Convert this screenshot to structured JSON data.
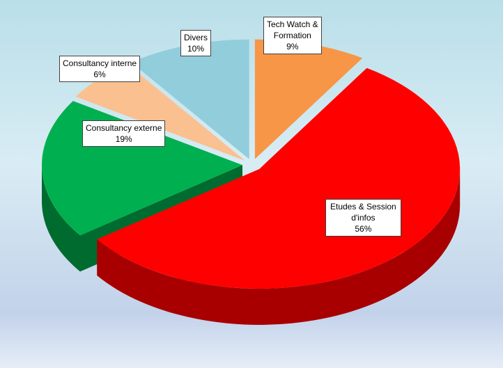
{
  "chart_data": {
    "type": "pie",
    "title": "",
    "categories": [
      "Tech Watch & Formation",
      "Etudes & Session d'infos",
      "Consultancy externe",
      "Consultancy interne",
      "Divers"
    ],
    "values": [
      9,
      56,
      19,
      6,
      10
    ],
    "unit": "%",
    "slices": [
      {
        "label_lines": [
          "Tech Watch &",
          "Formation"
        ],
        "value": 9,
        "value_label": "9%",
        "color": "#f79646",
        "side_color": "#b8652a"
      },
      {
        "label_lines": [
          "Etudes & Session",
          "d'infos"
        ],
        "value": 56,
        "value_label": "56%",
        "color": "#ff0000",
        "side_color": "#a80000"
      },
      {
        "label_lines": [
          "Consultancy externe"
        ],
        "value": 19,
        "value_label": "19%",
        "color": "#00b050",
        "side_color": "#006b2f"
      },
      {
        "label_lines": [
          "Consultancy interne"
        ],
        "value": 6,
        "value_label": "6%",
        "color": "#fac090",
        "side_color": "#6b4a35"
      },
      {
        "label_lines": [
          "Divers"
        ],
        "value": 10,
        "value_label": "10%",
        "color": "#92cddc",
        "side_color": "#345a66"
      }
    ],
    "exploded": true,
    "three_d": true,
    "legend": "none"
  }
}
